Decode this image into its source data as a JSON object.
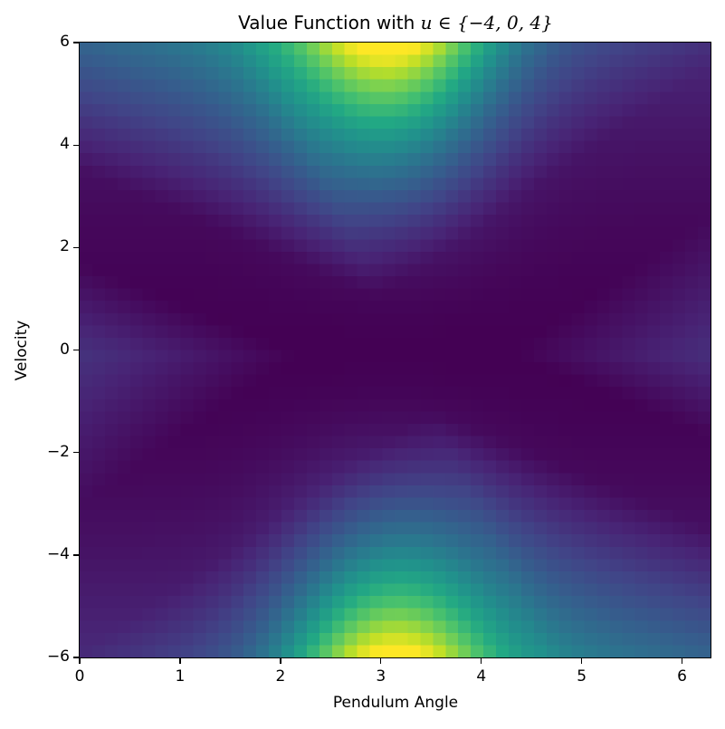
{
  "chart_data": {
    "type": "heatmap",
    "title": "Value Function with u ∈ {−4, 0, 4}",
    "title_parts": {
      "prefix": "Value Function with ",
      "math": "u ∈ {−4, 0, 4}"
    },
    "xlabel": "Pendulum Angle",
    "ylabel": "Velocity",
    "xlim": [
      0,
      6.283
    ],
    "ylim": [
      -6,
      6
    ],
    "xticks": [
      "0",
      "1",
      "2",
      "3",
      "4",
      "5",
      "6"
    ],
    "yticks": [
      "6",
      "4",
      "2",
      "0",
      "−2",
      "−4",
      "−6"
    ],
    "grid": false,
    "colormap": "viridis",
    "grid_resolution": {
      "cols": 50,
      "rows": 50
    },
    "description": "Low values (dark purple) along an X-shaped band through the center running from (0,+2.5) to (2π,−2.5) and (0,−4.5) to (2π,+4); high values (yellow) near angle≈π at velocity extremes ±6.",
    "features": {
      "max_regions": [
        {
          "angle": 3.1,
          "velocity": 5.9,
          "level": "yellow"
        },
        {
          "angle": 3.0,
          "velocity": -5.9,
          "level": "yellow-green"
        }
      ],
      "min_regions": [
        {
          "angle": 0.0,
          "velocity": 0.0,
          "level": "dark purple"
        },
        {
          "angle": 6.28,
          "velocity": 0.0,
          "level": "dark purple"
        },
        {
          "angle": 3.14,
          "velocity": 0.5,
          "level": "dark purple"
        }
      ]
    }
  }
}
